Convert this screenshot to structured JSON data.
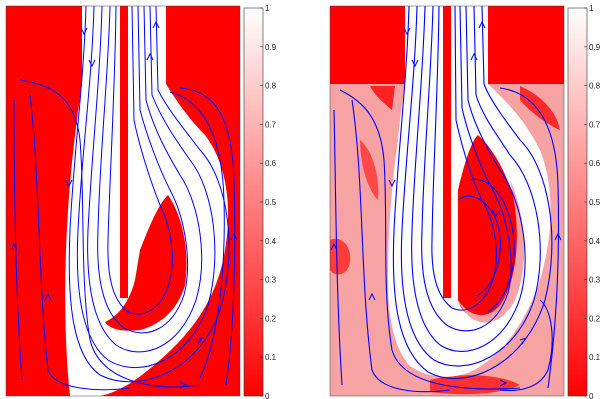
{
  "chart_data": [
    {
      "type": "heatmap",
      "title": "",
      "xlabel": "",
      "ylabel": "",
      "colormap": {
        "low": "#ff0000",
        "high": "#ffffff"
      },
      "colorbar": {
        "range": [
          0,
          1
        ],
        "ticks": [
          0,
          0.1,
          0.2,
          0.3,
          0.4,
          0.5,
          0.6,
          0.7,
          0.8,
          0.9,
          1
        ],
        "tick_labels": [
          "0",
          "0.1",
          "0.2",
          "0.3",
          "0.4",
          "0.5",
          "0.6",
          "0.7",
          "0.8",
          "0.9",
          "1"
        ]
      },
      "streamline_color": "#0000ff",
      "background_value": 0,
      "jet_value": 1
    },
    {
      "type": "heatmap",
      "title": "",
      "xlabel": "",
      "ylabel": "",
      "colormap": {
        "low": "#ff0000",
        "high": "#ffffff"
      },
      "colorbar": {
        "range": [
          0,
          1
        ],
        "ticks": [
          0,
          0.1,
          0.2,
          0.3,
          0.4,
          0.5,
          0.6,
          0.7,
          0.8,
          0.9,
          1
        ],
        "tick_labels": [
          "0",
          "0.1",
          "0.2",
          "0.3",
          "0.4",
          "0.5",
          "0.6",
          "0.7",
          "0.8",
          "0.9",
          "1"
        ]
      },
      "streamline_color": "#0000ff",
      "background_value": 0.4,
      "jet_value": 1
    }
  ]
}
